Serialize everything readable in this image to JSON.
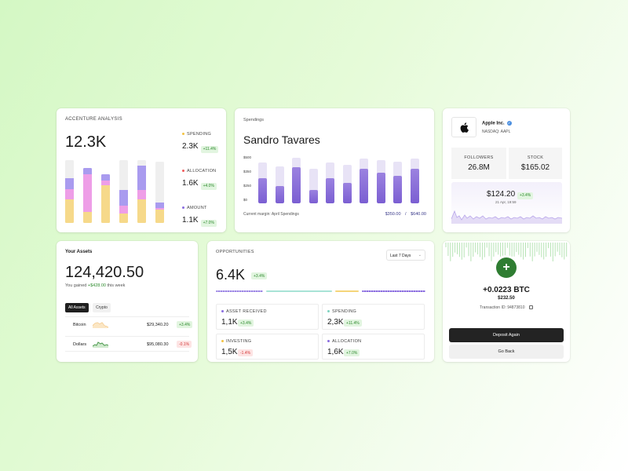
{
  "accenture": {
    "title": "ACCENTURE ANALYSIS",
    "value": "12.3K",
    "legend": [
      {
        "label": "SPENDING",
        "value": "2.3K",
        "change": "+11.4%",
        "color": "#f3c343"
      },
      {
        "label": "ALLOCATION",
        "value": "1.6K",
        "change": "+4.0%",
        "color": "#ef5b5b"
      },
      {
        "label": "AMOUNT",
        "value": "1.1K",
        "change": "+7.0%",
        "color": "#8a6de0"
      }
    ]
  },
  "spendings": {
    "title": "Spendings",
    "name": "Sandro Tavares",
    "y_ticks": [
      "$500",
      "$350",
      "$250",
      "$0"
    ],
    "footer_label": "Current margin: April Spendings",
    "footer_value_1": "$350.00",
    "footer_sep": "/",
    "footer_value_2": "$640.00",
    "bars": [
      0.55,
      0.2,
      1.0,
      0.0,
      0.55,
      0.35,
      0.95,
      0.8,
      0.65,
      0.95
    ]
  },
  "stock": {
    "company": "Apple Inc.",
    "ticker": "NASDAQ: AAPL",
    "followers_label": "FOLLOWERS",
    "followers": "26.8M",
    "stock_label": "STOCK",
    "stock_value": "$165.02",
    "price": "$124.20",
    "price_change": "+3.4%",
    "date": "21 Apr, 19:59"
  },
  "assets": {
    "title": "Your Assets",
    "amount_main": "124,420",
    "amount_dec": ".50",
    "gain_prefix": "You gained",
    "gain_value": "+$428.00",
    "gain_suffix": "this week",
    "tabs": [
      "All Assets",
      "Crypto"
    ],
    "rows": [
      {
        "name": "Bitcoin",
        "price": "$29,340.20",
        "change": "+3.4%",
        "positive": true
      },
      {
        "name": "Dollars",
        "price": "$95,080.30",
        "change": "-0.1%",
        "positive": false
      }
    ]
  },
  "opportunities": {
    "title": "OPPORTUNITIES",
    "range": "Last 7 Days",
    "value": "6.4K",
    "change": "+3.4%",
    "cells": [
      {
        "label": "ASSET RECEIVED",
        "value": "1,1K",
        "change": "+3.4%",
        "positive": true
      },
      {
        "label": "SPENDING",
        "value": "2,3K",
        "change": "+11.4%",
        "positive": true
      },
      {
        "label": "INVESTING",
        "value": "1,5K",
        "change": "-1.4%",
        "positive": false
      },
      {
        "label": "ALLOCATION",
        "value": "1,6K",
        "change": "+7.0%",
        "positive": true
      }
    ]
  },
  "deposit": {
    "btc": "+0.0223 BTC",
    "usd": "$232.50",
    "tx": "Transaction ID: 94873810",
    "primary": "Deposit Again",
    "secondary": "Go Back"
  }
}
